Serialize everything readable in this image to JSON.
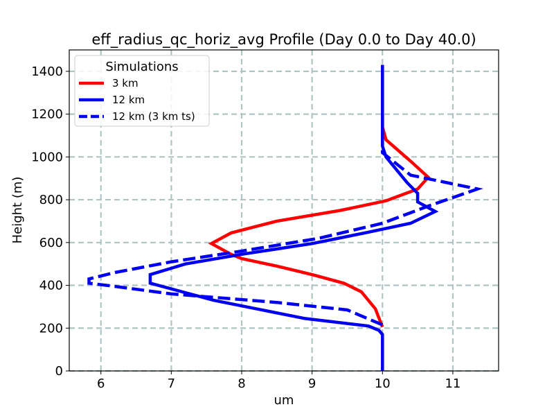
{
  "chart_data": {
    "type": "line",
    "title": "eff_radius_qc_horiz_avg Profile (Day 0.0 to Day 40.0)",
    "xlabel": "um",
    "ylabel": "Height (m)",
    "xlim": [
      5.55,
      11.65
    ],
    "ylim": [
      0,
      1500
    ],
    "xticks": [
      6,
      7,
      8,
      9,
      10,
      11
    ],
    "yticks": [
      0,
      200,
      400,
      600,
      800,
      1000,
      1200,
      1400
    ],
    "grid": true,
    "legend": {
      "title": "Simulations",
      "position": "upper-left"
    },
    "series": [
      {
        "name": "3 km",
        "color": "#ff0000",
        "style": "solid",
        "x": [
          10.0,
          9.9,
          9.7,
          9.45,
          9.0,
          8.5,
          8.0,
          7.85,
          7.57,
          7.85,
          8.5,
          9.4,
          10.05,
          10.5,
          10.65,
          10.4,
          10.05,
          10.0,
          10.0,
          10.0,
          10.0,
          10.0
        ],
        "y": [
          205,
          290,
          370,
          410,
          450,
          490,
          525,
          545,
          595,
          645,
          700,
          750,
          795,
          850,
          905,
          980,
          1080,
          1140,
          1200,
          1300,
          1400,
          1430
        ]
      },
      {
        "name": "12 km",
        "color": "#0000ee",
        "style": "solid",
        "x": [
          10.0,
          10.0,
          10.0,
          9.95,
          9.8,
          8.9,
          7.6,
          6.7,
          6.7,
          7.2,
          8.0,
          9.0,
          9.75,
          10.4,
          10.75,
          10.5,
          10.5,
          10.35,
          10.15,
          10.05,
          10.0,
          10.0,
          10.0,
          10.0,
          10.0
        ],
        "y": [
          0,
          100,
          170,
          190,
          210,
          245,
          330,
          410,
          450,
          500,
          545,
          595,
          645,
          690,
          745,
          790,
          830,
          880,
          960,
          1000,
          1050,
          1150,
          1250,
          1350,
          1430
        ]
      },
      {
        "name": "12 km (3 km ts)",
        "color": "#0000ee",
        "style": "dashed",
        "x": [
          10.0,
          9.5,
          8.5,
          7.0,
          6.2,
          5.83,
          5.83,
          6.2,
          7.0,
          8.0,
          9.1,
          10.0,
          10.65,
          11.35,
          10.4,
          10.0,
          10.0,
          10.0
        ],
        "y": [
          215,
          285,
          320,
          360,
          395,
          410,
          430,
          460,
          510,
          560,
          620,
          690,
          770,
          850,
          915,
          1020,
          1100,
          1200
        ]
      }
    ]
  }
}
